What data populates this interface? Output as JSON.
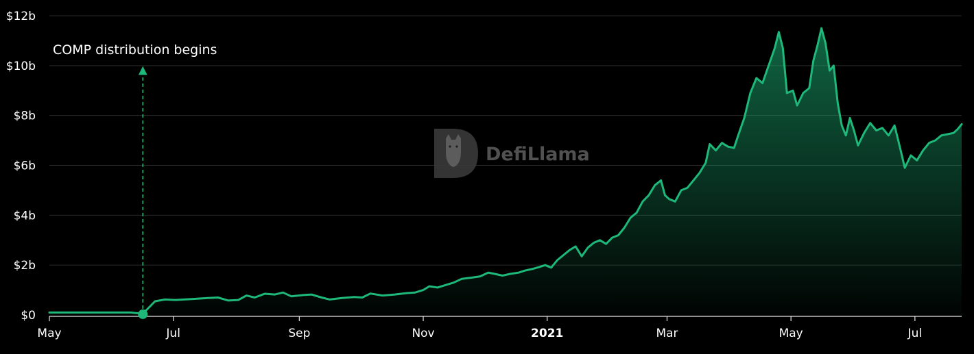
{
  "chart_data": {
    "type": "area",
    "title": "",
    "xlabel": "",
    "ylabel": "",
    "ylim": [
      0,
      12
    ],
    "y_unit": "billions USD",
    "y_ticks": [
      0,
      2,
      4,
      6,
      8,
      10,
      12
    ],
    "y_tick_labels": [
      "$0",
      "$2b",
      "$4b",
      "$6b",
      "$8b",
      "$10b",
      "$12b"
    ],
    "x_range": [
      "2020-05-01",
      "2021-07-24"
    ],
    "x_ticks": [
      {
        "date": "2020-05-01",
        "label": "May",
        "bold": false
      },
      {
        "date": "2020-07-01",
        "label": "Jul",
        "bold": false
      },
      {
        "date": "2020-09-01",
        "label": "Sep",
        "bold": false
      },
      {
        "date": "2020-11-01",
        "label": "Nov",
        "bold": false
      },
      {
        "date": "2021-01-01",
        "label": "2021",
        "bold": true
      },
      {
        "date": "2021-03-01",
        "label": "Mar",
        "bold": false
      },
      {
        "date": "2021-05-01",
        "label": "May",
        "bold": false
      },
      {
        "date": "2021-07-01",
        "label": "Jul",
        "bold": false
      }
    ],
    "grid": true,
    "line_color": "#1db87a",
    "annotation": {
      "text": "COMP distribution begins",
      "date": "2020-06-16",
      "value": 0.03
    },
    "series": [
      {
        "points": [
          [
            "2020-05-01",
            0.1
          ],
          [
            "2020-05-20",
            0.1
          ],
          [
            "2020-06-10",
            0.1
          ],
          [
            "2020-06-16",
            0.05
          ],
          [
            "2020-06-22",
            0.55
          ],
          [
            "2020-06-27",
            0.62
          ],
          [
            "2020-07-02",
            0.6
          ],
          [
            "2020-07-10",
            0.64
          ],
          [
            "2020-07-18",
            0.68
          ],
          [
            "2020-07-23",
            0.7
          ],
          [
            "2020-07-28",
            0.58
          ],
          [
            "2020-08-02",
            0.6
          ],
          [
            "2020-08-06",
            0.78
          ],
          [
            "2020-08-10",
            0.7
          ],
          [
            "2020-08-15",
            0.85
          ],
          [
            "2020-08-20",
            0.82
          ],
          [
            "2020-08-24",
            0.9
          ],
          [
            "2020-08-28",
            0.75
          ],
          [
            "2020-09-03",
            0.8
          ],
          [
            "2020-09-07",
            0.82
          ],
          [
            "2020-09-12",
            0.7
          ],
          [
            "2020-09-16",
            0.62
          ],
          [
            "2020-09-22",
            0.68
          ],
          [
            "2020-09-28",
            0.72
          ],
          [
            "2020-10-02",
            0.7
          ],
          [
            "2020-10-06",
            0.86
          ],
          [
            "2020-10-12",
            0.78
          ],
          [
            "2020-10-18",
            0.82
          ],
          [
            "2020-10-24",
            0.88
          ],
          [
            "2020-10-28",
            0.9
          ],
          [
            "2020-11-01",
            1.0
          ],
          [
            "2020-11-04",
            1.15
          ],
          [
            "2020-11-08",
            1.1
          ],
          [
            "2020-11-12",
            1.2
          ],
          [
            "2020-11-16",
            1.3
          ],
          [
            "2020-11-20",
            1.45
          ],
          [
            "2020-11-25",
            1.5
          ],
          [
            "2020-11-29",
            1.55
          ],
          [
            "2020-12-03",
            1.7
          ],
          [
            "2020-12-06",
            1.65
          ],
          [
            "2020-12-10",
            1.58
          ],
          [
            "2020-12-14",
            1.65
          ],
          [
            "2020-12-18",
            1.7
          ],
          [
            "2020-12-21",
            1.78
          ],
          [
            "2020-12-25",
            1.85
          ],
          [
            "2020-12-28",
            1.92
          ],
          [
            "2020-12-31",
            2.0
          ],
          [
            "2021-01-03",
            1.9
          ],
          [
            "2021-01-06",
            2.2
          ],
          [
            "2021-01-09",
            2.4
          ],
          [
            "2021-01-12",
            2.6
          ],
          [
            "2021-01-15",
            2.75
          ],
          [
            "2021-01-18",
            2.35
          ],
          [
            "2021-01-21",
            2.7
          ],
          [
            "2021-01-24",
            2.9
          ],
          [
            "2021-01-27",
            3.0
          ],
          [
            "2021-01-30",
            2.85
          ],
          [
            "2021-02-02",
            3.1
          ],
          [
            "2021-02-05",
            3.2
          ],
          [
            "2021-02-08",
            3.5
          ],
          [
            "2021-02-11",
            3.9
          ],
          [
            "2021-02-14",
            4.1
          ],
          [
            "2021-02-17",
            4.55
          ],
          [
            "2021-02-20",
            4.8
          ],
          [
            "2021-02-23",
            5.2
          ],
          [
            "2021-02-26",
            5.4
          ],
          [
            "2021-02-28",
            4.8
          ],
          [
            "2021-03-02",
            4.65
          ],
          [
            "2021-03-05",
            4.55
          ],
          [
            "2021-03-08",
            5.0
          ],
          [
            "2021-03-11",
            5.1
          ],
          [
            "2021-03-14",
            5.4
          ],
          [
            "2021-03-17",
            5.7
          ],
          [
            "2021-03-20",
            6.1
          ],
          [
            "2021-03-22",
            6.85
          ],
          [
            "2021-03-25",
            6.6
          ],
          [
            "2021-03-28",
            6.9
          ],
          [
            "2021-03-31",
            6.75
          ],
          [
            "2021-04-03",
            6.7
          ],
          [
            "2021-04-05",
            7.2
          ],
          [
            "2021-04-08",
            7.9
          ],
          [
            "2021-04-11",
            8.9
          ],
          [
            "2021-04-14",
            9.5
          ],
          [
            "2021-04-17",
            9.3
          ],
          [
            "2021-04-20",
            10.0
          ],
          [
            "2021-04-23",
            10.7
          ],
          [
            "2021-04-25",
            11.35
          ],
          [
            "2021-04-27",
            10.7
          ],
          [
            "2021-04-29",
            8.9
          ],
          [
            "2021-05-02",
            9.0
          ],
          [
            "2021-05-04",
            8.4
          ],
          [
            "2021-05-07",
            8.9
          ],
          [
            "2021-05-10",
            9.1
          ],
          [
            "2021-05-12",
            10.2
          ],
          [
            "2021-05-14",
            10.8
          ],
          [
            "2021-05-16",
            11.5
          ],
          [
            "2021-05-18",
            10.9
          ],
          [
            "2021-05-20",
            9.8
          ],
          [
            "2021-05-22",
            10.0
          ],
          [
            "2021-05-24",
            8.5
          ],
          [
            "2021-05-26",
            7.6
          ],
          [
            "2021-05-28",
            7.2
          ],
          [
            "2021-05-30",
            7.9
          ],
          [
            "2021-06-01",
            7.4
          ],
          [
            "2021-06-03",
            6.8
          ],
          [
            "2021-06-06",
            7.3
          ],
          [
            "2021-06-09",
            7.7
          ],
          [
            "2021-06-12",
            7.4
          ],
          [
            "2021-06-15",
            7.5
          ],
          [
            "2021-06-18",
            7.2
          ],
          [
            "2021-06-21",
            7.6
          ],
          [
            "2021-06-24",
            6.6
          ],
          [
            "2021-06-26",
            5.9
          ],
          [
            "2021-06-29",
            6.4
          ],
          [
            "2021-07-02",
            6.2
          ],
          [
            "2021-07-05",
            6.6
          ],
          [
            "2021-07-08",
            6.9
          ],
          [
            "2021-07-11",
            7.0
          ],
          [
            "2021-07-14",
            7.2
          ],
          [
            "2021-07-17",
            7.25
          ],
          [
            "2021-07-20",
            7.3
          ],
          [
            "2021-07-22",
            7.45
          ],
          [
            "2021-07-24",
            7.65
          ]
        ]
      }
    ]
  },
  "watermark": {
    "text": "DefiLlama",
    "icon": "llama-logo-icon"
  }
}
